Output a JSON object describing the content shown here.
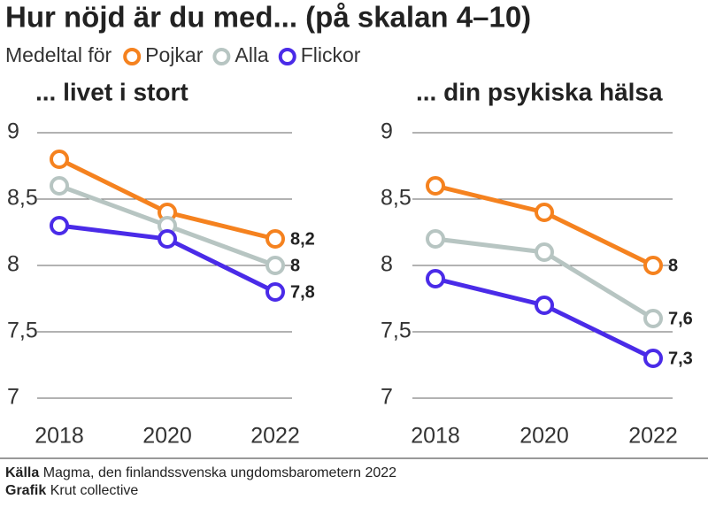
{
  "header": {
    "title": "Hur nöjd är du med... (på skalan 4–10)",
    "legend_prefix": "Medeltal för"
  },
  "chart_data": [
    {
      "type": "line",
      "title": "... livet i stort",
      "categories": [
        "2018",
        "2020",
        "2022"
      ],
      "series": [
        {
          "name": "Pojkar",
          "color": "#f5821f",
          "values": [
            8.8,
            8.4,
            8.2
          ],
          "value_labels": [
            null,
            null,
            "8,2"
          ]
        },
        {
          "name": "Alla",
          "color": "#b7c5c2",
          "values": [
            8.6,
            8.3,
            8.0
          ],
          "value_labels": [
            null,
            null,
            "8"
          ]
        },
        {
          "name": "Flickor",
          "color": "#4a2be8",
          "values": [
            8.3,
            8.2,
            7.8
          ],
          "value_labels": [
            null,
            null,
            "7,8"
          ]
        }
      ],
      "ylim": [
        7,
        9
      ],
      "yticks": [
        7,
        {
          "value": 7.5,
          "label": "7,5"
        },
        8,
        {
          "value": 8.5,
          "label": "8,5"
        },
        9
      ],
      "grid": true
    },
    {
      "type": "line",
      "title": "... din psykiska hälsa",
      "categories": [
        "2018",
        "2020",
        "2022"
      ],
      "series": [
        {
          "name": "Pojkar",
          "color": "#f5821f",
          "values": [
            8.6,
            8.4,
            8.0
          ],
          "value_labels": [
            null,
            null,
            "8"
          ]
        },
        {
          "name": "Alla",
          "color": "#b7c5c2",
          "values": [
            8.2,
            8.1,
            7.6
          ],
          "value_labels": [
            null,
            null,
            "7,6"
          ]
        },
        {
          "name": "Flickor",
          "color": "#4a2be8",
          "values": [
            7.9,
            7.7,
            7.3
          ],
          "value_labels": [
            null,
            null,
            "7,3"
          ]
        }
      ],
      "ylim": [
        7,
        9
      ],
      "yticks": [
        7,
        {
          "value": 7.5,
          "label": "7,5"
        },
        8,
        {
          "value": 8.5,
          "label": "8,5"
        },
        9
      ],
      "grid": true
    }
  ],
  "footer": {
    "source_label": "Källa",
    "source": "Magma, den finlandssvenska ungdomsbarometern 2022",
    "credit_label": "Grafik",
    "credit": "Krut collective"
  }
}
